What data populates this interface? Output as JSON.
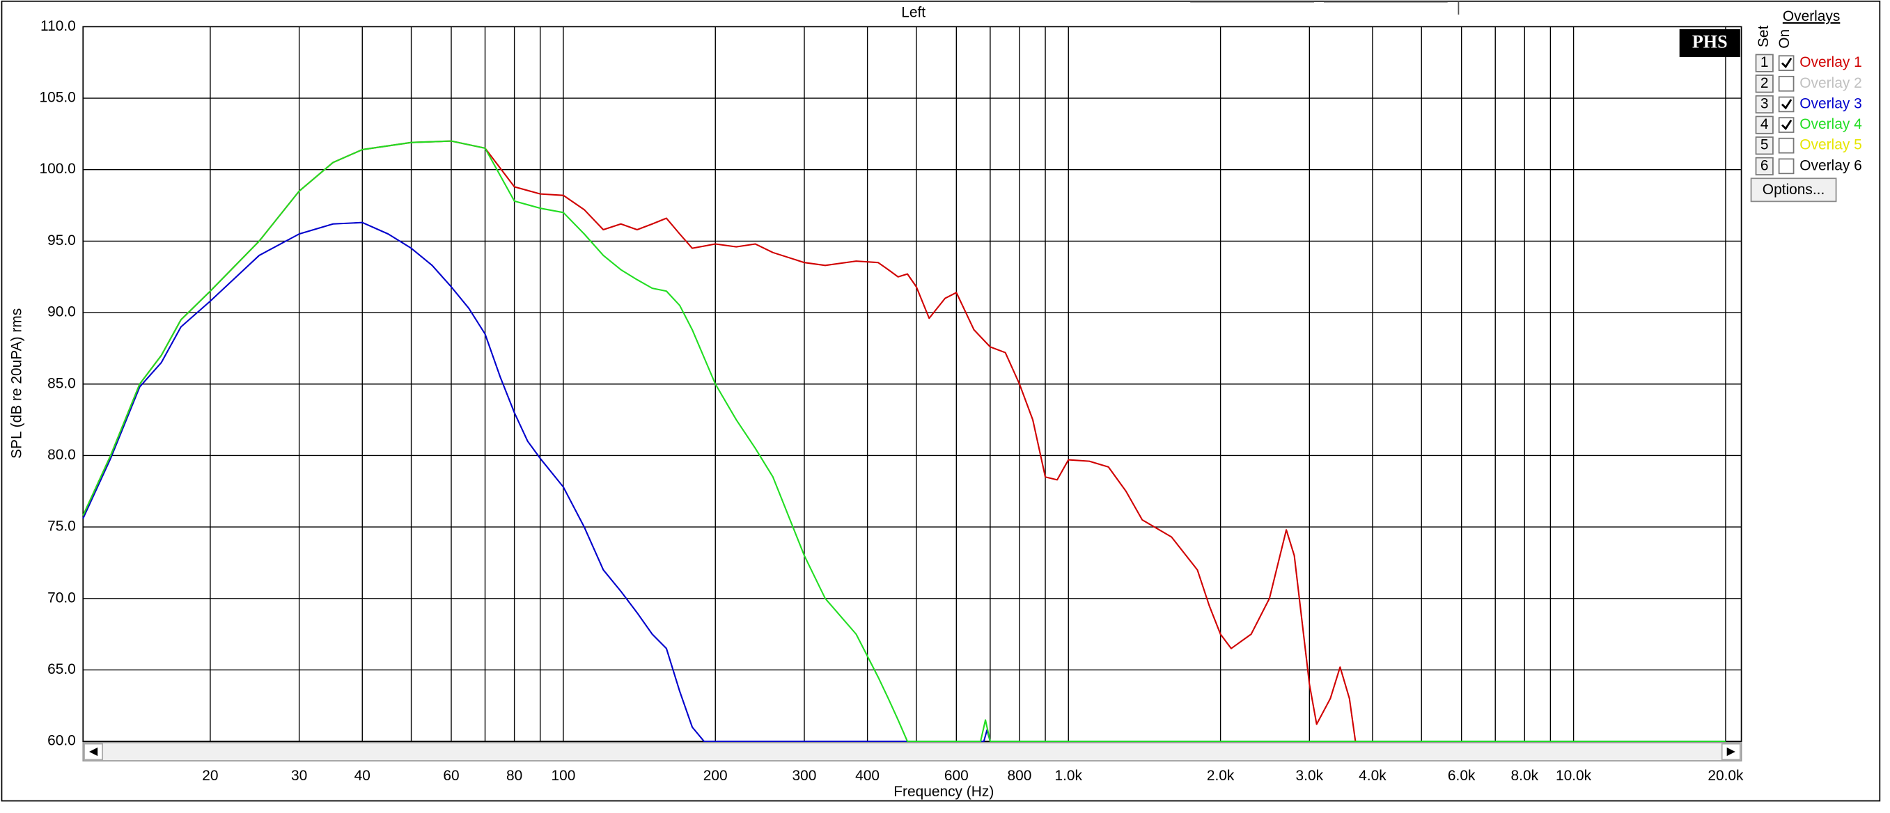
{
  "chart_data": {
    "type": "line",
    "title": "Left",
    "xlabel": "Frequency (Hz)",
    "ylabel": "SPL (dB re 20uPA) rms",
    "xscale": "log",
    "xlim": [
      11.2,
      20000
    ],
    "ylim": [
      60,
      110
    ],
    "yticks": [
      {
        "value": 60,
        "label": "60.0"
      },
      {
        "value": 65,
        "label": "65.0"
      },
      {
        "value": 70,
        "label": "70.0"
      },
      {
        "value": 75,
        "label": "75.0"
      },
      {
        "value": 80,
        "label": "80.0"
      },
      {
        "value": 85,
        "label": "85.0"
      },
      {
        "value": 90,
        "label": "90.0"
      },
      {
        "value": 95,
        "label": "95.0"
      },
      {
        "value": 100,
        "label": "100.0"
      },
      {
        "value": 105,
        "label": "105.0"
      },
      {
        "value": 110,
        "label": "110.0"
      }
    ],
    "xticks": [
      20,
      30,
      40,
      60,
      80,
      100,
      200,
      300,
      400,
      600,
      800,
      {
        "value": 1000,
        "label": "1.0k"
      },
      {
        "value": 2000,
        "label": "2.0k"
      },
      {
        "value": 3000,
        "label": "3.0k"
      },
      {
        "value": 4000,
        "label": "4.0k"
      },
      {
        "value": 6000,
        "label": "6.0k"
      },
      {
        "value": 8000,
        "label": "8.0k"
      },
      {
        "value": 10000,
        "label": "10.0k"
      },
      {
        "value": 20000,
        "label": "20.0k"
      }
    ],
    "x_minor_grid": [
      50,
      70,
      90,
      500,
      700,
      900,
      5000,
      7000,
      9000
    ],
    "grid": true,
    "legend_title": "Overlays",
    "legend_columns": [
      "Set",
      "On"
    ],
    "options_button": "Options...",
    "logo": "PHS",
    "series": [
      {
        "set": 1,
        "name": "Overlay 1",
        "color": "#d00000",
        "on": true,
        "x": [
          11.2,
          12.7,
          14.5,
          16,
          17.5,
          20,
          25,
          30,
          35,
          40,
          50,
          60,
          70,
          80,
          90,
          100,
          110,
          120,
          130,
          140,
          150,
          160,
          170,
          180,
          200,
          220,
          240,
          260,
          300,
          330,
          380,
          420,
          440,
          460,
          480,
          500,
          530,
          570,
          600,
          650,
          700,
          750,
          800,
          850,
          900,
          950,
          1000,
          1100,
          1200,
          1300,
          1400,
          1600,
          1800,
          1900,
          2000,
          2100,
          2300,
          2500,
          2700,
          2800,
          3000,
          3100,
          3300,
          3450,
          3600,
          3700
        ],
        "values": [
          75.8,
          80.0,
          85.0,
          87.0,
          89.5,
          91.5,
          95.0,
          98.5,
          100.5,
          101.4,
          101.9,
          102.0,
          101.5,
          98.8,
          98.3,
          98.2,
          97.2,
          95.8,
          96.2,
          95.8,
          96.2,
          96.6,
          95.5,
          94.5,
          94.8,
          94.6,
          94.8,
          94.2,
          93.5,
          93.3,
          93.6,
          93.5,
          93.0,
          92.5,
          92.7,
          91.8,
          89.6,
          91.0,
          91.4,
          88.8,
          87.6,
          87.2,
          85.0,
          82.5,
          78.5,
          78.3,
          79.7,
          79.6,
          79.2,
          77.5,
          75.5,
          74.3,
          72.0,
          69.5,
          67.5,
          66.5,
          67.5,
          70.0,
          74.8,
          73.0,
          64.0,
          61.2,
          63.0,
          65.2,
          63.0,
          60.0
        ]
      },
      {
        "set": 2,
        "name": "Overlay 2",
        "color": "#c0c0c0",
        "on": false,
        "x": [],
        "values": []
      },
      {
        "set": 3,
        "name": "Overlay 3",
        "color": "#0000cc",
        "on": true,
        "x": [
          11.2,
          12.7,
          14.5,
          16,
          17.5,
          20,
          25,
          30,
          35,
          40,
          45,
          50,
          55,
          60,
          65,
          70,
          75,
          80,
          85,
          90,
          100,
          110,
          120,
          130,
          140,
          150,
          160,
          170,
          180,
          190,
          680,
          690,
          700,
          20000
        ],
        "values": [
          75.6,
          79.8,
          84.8,
          86.5,
          89.0,
          90.8,
          94.0,
          95.5,
          96.2,
          96.3,
          95.5,
          94.5,
          93.3,
          91.8,
          90.3,
          88.5,
          85.5,
          83.0,
          81.0,
          79.8,
          77.8,
          75.0,
          72.0,
          70.5,
          69.0,
          67.5,
          66.5,
          63.5,
          61.0,
          60.0,
          60.0,
          60.8,
          60.0,
          60.0
        ]
      },
      {
        "set": 4,
        "name": "Overlay 4",
        "color": "#22dd22",
        "on": true,
        "x": [
          11.2,
          12.7,
          14.5,
          16,
          17.5,
          20,
          25,
          30,
          35,
          40,
          50,
          60,
          70,
          80,
          90,
          100,
          110,
          120,
          130,
          140,
          150,
          160,
          170,
          180,
          200,
          220,
          240,
          260,
          300,
          330,
          380,
          420,
          440,
          460,
          480,
          670,
          685,
          700,
          20000
        ],
        "values": [
          75.8,
          80.0,
          85.0,
          87.0,
          89.5,
          91.5,
          95.0,
          98.5,
          100.5,
          101.4,
          101.9,
          102.0,
          101.5,
          97.8,
          97.3,
          97.0,
          95.5,
          94.0,
          93.0,
          92.3,
          91.7,
          91.5,
          90.5,
          88.8,
          85.0,
          82.5,
          80.5,
          78.5,
          73.0,
          70.0,
          67.5,
          64.5,
          63.0,
          61.5,
          60.0,
          60.0,
          61.5,
          60.0,
          60.0
        ]
      },
      {
        "set": 5,
        "name": "Overlay 5",
        "color": "#e6e600",
        "on": false,
        "x": [],
        "values": []
      },
      {
        "set": 6,
        "name": "Overlay 6",
        "color": "#000000",
        "on": false,
        "x": [],
        "values": []
      }
    ]
  }
}
